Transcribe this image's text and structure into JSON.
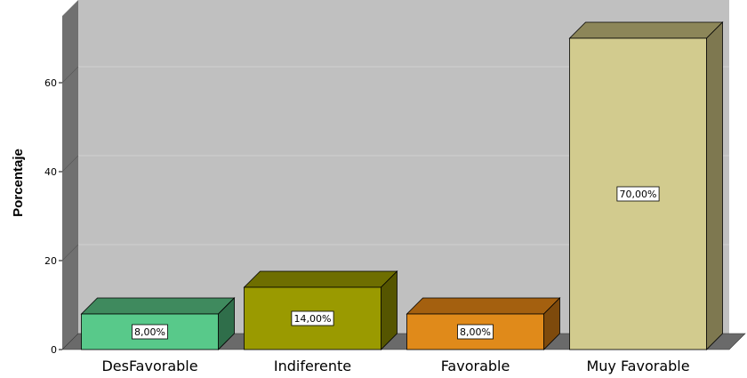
{
  "chart_data": {
    "type": "bar",
    "categories": [
      "DesFavorable",
      "Indiferente",
      "Favorable",
      "Muy Favorable"
    ],
    "values": [
      8,
      14,
      8,
      70
    ],
    "data_labels": [
      "8,00%",
      "14,00%",
      "8,00%",
      "70,00%"
    ],
    "title": "",
    "xlabel": "",
    "ylabel": "Porcentaje",
    "ylim": [
      0,
      75
    ],
    "yticks": [
      0,
      20,
      40,
      60
    ],
    "grid": true,
    "style": "3d",
    "colors": {
      "plot_back": "#c0c0c0",
      "wall_left": "#707070",
      "floor": "#6a6a6a",
      "gridline": "#d0d0d0",
      "bars": [
        {
          "front": "#58c98a",
          "top": "#3f8a5e",
          "side": "#2f6e4a"
        },
        {
          "front": "#9a9a00",
          "top": "#6e6e00",
          "side": "#555500"
        },
        {
          "front": "#e08a1a",
          "top": "#a4600f",
          "side": "#7e4a0c"
        },
        {
          "front": "#d2cb8e",
          "top": "#8c8659",
          "side": "#7e7850"
        }
      ]
    }
  }
}
